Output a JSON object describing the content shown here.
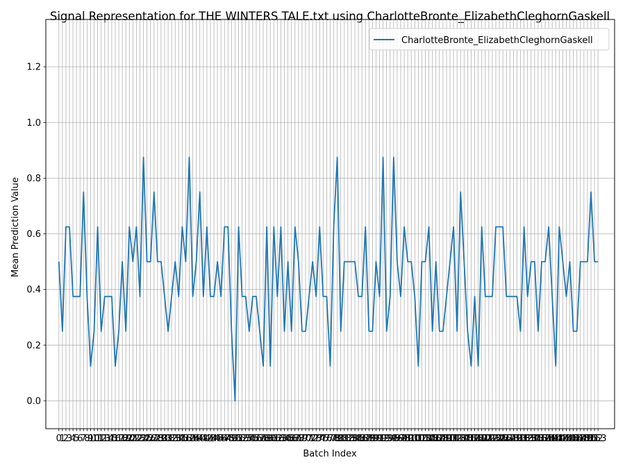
{
  "chart_data": {
    "type": "line",
    "title": "Signal Representation for THE WINTERS TALE.txt using CharlotteBronte_ElizabethCleghornGaskell",
    "xlabel": "Batch Index",
    "ylabel": "Mean Prediction Value",
    "xlim": [
      -3.7,
      157.7
    ],
    "ylim": [
      -0.1,
      1.37
    ],
    "yticks": [
      0.0,
      0.2,
      0.4,
      0.6,
      0.8,
      1.0,
      1.2
    ],
    "ytick_labels": [
      "0.0",
      "0.2",
      "0.4",
      "0.6",
      "0.8",
      "1.0",
      "1.2"
    ],
    "grid": true,
    "legend_position": "top-right",
    "series_color": "#1f77b4",
    "series": [
      {
        "name": "CharlotteBronte_ElizabethCleghornGaskell",
        "x_start": 0,
        "values": [
          0.5,
          0.25,
          0.625,
          0.625,
          0.375,
          0.375,
          0.375,
          0.75,
          0.375,
          0.125,
          0.25,
          0.625,
          0.25,
          0.375,
          0.375,
          0.375,
          0.125,
          0.25,
          0.5,
          0.25,
          0.625,
          0.5,
          0.625,
          0.375,
          0.875,
          0.5,
          0.5,
          0.75,
          0.5,
          0.5,
          0.375,
          0.25,
          0.375,
          0.5,
          0.375,
          0.625,
          0.5,
          0.875,
          0.375,
          0.5,
          0.75,
          0.375,
          0.625,
          0.375,
          0.375,
          0.5,
          0.375,
          0.625,
          0.625,
          0.25,
          0.0,
          0.625,
          0.375,
          0.375,
          0.25,
          0.375,
          0.375,
          0.25,
          0.125,
          0.625,
          0.125,
          0.625,
          0.375,
          0.625,
          0.25,
          0.5,
          0.25,
          0.625,
          0.5,
          0.25,
          0.25,
          0.375,
          0.5,
          0.375,
          0.625,
          0.375,
          0.375,
          0.125,
          0.625,
          0.875,
          0.25,
          0.5,
          0.5,
          0.5,
          0.5,
          0.375,
          0.375,
          0.625,
          0.25,
          0.25,
          0.5,
          0.375,
          0.875,
          0.25,
          0.375,
          0.875,
          0.5,
          0.375,
          0.625,
          0.5,
          0.5,
          0.375,
          0.125,
          0.5,
          0.5,
          0.625,
          0.25,
          0.5,
          0.25,
          0.25,
          0.375,
          0.5,
          0.625,
          0.25,
          0.75,
          0.5,
          0.25,
          0.125,
          0.375,
          0.125,
          0.625,
          0.375,
          0.375,
          0.375,
          0.625,
          0.625,
          0.625,
          0.375,
          0.375,
          0.375,
          0.375,
          0.25,
          0.625,
          0.375,
          0.5,
          0.5,
          0.25,
          0.5,
          0.5,
          0.625,
          0.375,
          0.125,
          0.625,
          0.5,
          0.375,
          0.5,
          0.25,
          0.25,
          0.5,
          0.5,
          0.5,
          0.75,
          0.5,
          0.5
        ]
      }
    ]
  }
}
